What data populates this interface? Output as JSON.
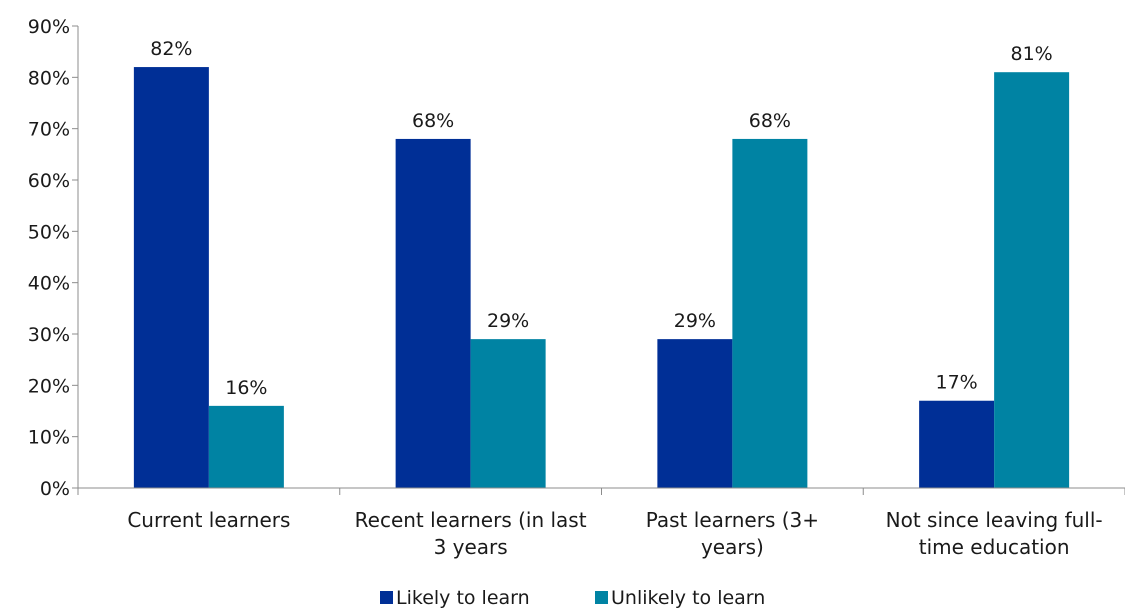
{
  "chart_data": {
    "type": "bar",
    "categories": [
      [
        "Current learners"
      ],
      [
        "Recent learners (in last",
        "3 years"
      ],
      [
        "Past learners (3+",
        "years)"
      ],
      [
        "Not since leaving full-",
        "time education"
      ]
    ],
    "series": [
      {
        "name": "Likely to learn",
        "color": "#002f96",
        "values": [
          82,
          68,
          29,
          17
        ],
        "labels": [
          "82%",
          "68%",
          "29%",
          "17%"
        ]
      },
      {
        "name": "Unlikely to learn",
        "color": "#0083a3",
        "values": [
          16,
          29,
          68,
          81
        ],
        "labels": [
          "16%",
          "29%",
          "68%",
          "81%"
        ]
      }
    ],
    "ylim": [
      0,
      90
    ],
    "yticks": [
      0,
      10,
      20,
      30,
      40,
      50,
      60,
      70,
      80,
      90
    ],
    "ytick_labels": [
      "0%",
      "10%",
      "20%",
      "30%",
      "40%",
      "50%",
      "60%",
      "70%",
      "80%",
      "90%"
    ],
    "grid": false,
    "legend": "bottom"
  }
}
